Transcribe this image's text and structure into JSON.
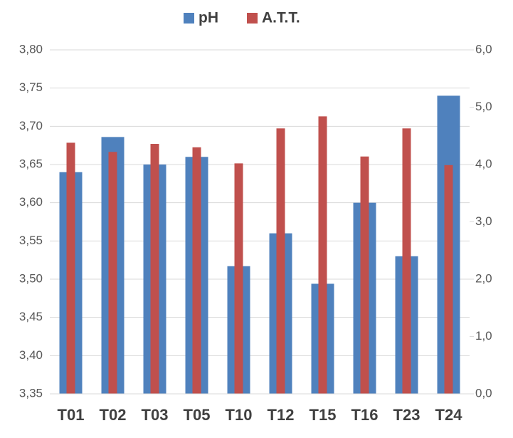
{
  "chart_data": {
    "type": "bar",
    "categories": [
      "T01",
      "T02",
      "T03",
      "T05",
      "T10",
      "T12",
      "T15",
      "T16",
      "T23",
      "T24"
    ],
    "series": [
      {
        "name": "pH",
        "color": "#4f81bd",
        "values": [
          3.64,
          3.686,
          3.65,
          3.66,
          3.517,
          3.56,
          3.494,
          3.6,
          3.53,
          3.74
        ]
      },
      {
        "name": "A.T.T.",
        "color": "#c0504d",
        "axis": "y2",
        "values": [
          4.38,
          4.22,
          4.36,
          4.3,
          4.02,
          4.63,
          4.84,
          4.14,
          4.63,
          3.99
        ]
      }
    ],
    "ylim": [
      3.35,
      3.8
    ],
    "yticks": [
      {
        "value": 3.35,
        "label": "3,35"
      },
      {
        "value": 3.4,
        "label": "3,40"
      },
      {
        "value": 3.45,
        "label": "3,45"
      },
      {
        "value": 3.5,
        "label": "3,50"
      },
      {
        "value": 3.55,
        "label": "3,55"
      },
      {
        "value": 3.6,
        "label": "3,60"
      },
      {
        "value": 3.65,
        "label": "3,65"
      },
      {
        "value": 3.7,
        "label": "3,70"
      },
      {
        "value": 3.75,
        "label": "3,75"
      },
      {
        "value": 3.8,
        "label": "3,80"
      }
    ],
    "y2lim": [
      0,
      6
    ],
    "y2ticks": [
      {
        "value": 0,
        "label": "0,0"
      },
      {
        "value": 1,
        "label": "1,0"
      },
      {
        "value": 2,
        "label": "2,0"
      },
      {
        "value": 3,
        "label": "3,0"
      },
      {
        "value": 4,
        "label": "4,0"
      },
      {
        "value": 5,
        "label": "5,0"
      },
      {
        "value": 6,
        "label": "6,0"
      }
    ],
    "grid": true,
    "legend": "top"
  }
}
